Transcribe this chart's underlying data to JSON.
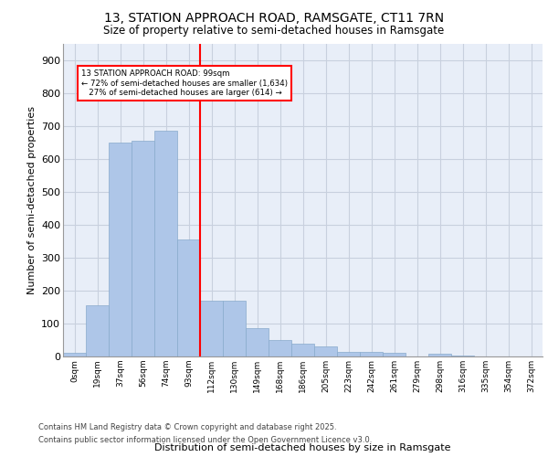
{
  "title1": "13, STATION APPROACH ROAD, RAMSGATE, CT11 7RN",
  "title2": "Size of property relative to semi-detached houses in Ramsgate",
  "xlabel": "Distribution of semi-detached houses by size in Ramsgate",
  "ylabel": "Number of semi-detached properties",
  "categories": [
    "0sqm",
    "19sqm",
    "37sqm",
    "56sqm",
    "74sqm",
    "93sqm",
    "112sqm",
    "130sqm",
    "149sqm",
    "168sqm",
    "186sqm",
    "205sqm",
    "223sqm",
    "242sqm",
    "261sqm",
    "279sqm",
    "298sqm",
    "316sqm",
    "335sqm",
    "354sqm",
    "372sqm"
  ],
  "values": [
    10,
    155,
    650,
    655,
    685,
    355,
    170,
    170,
    85,
    50,
    40,
    30,
    13,
    13,
    10,
    0,
    8,
    2,
    0,
    0,
    0
  ],
  "bar_color": "#aec6e8",
  "bar_edge_color": "#88aacc",
  "vline_color": "red",
  "annotation_text": "13 STATION APPROACH ROAD: 99sqm\n← 72% of semi-detached houses are smaller (1,634)\n   27% of semi-detached houses are larger (614) →",
  "annotation_box_color": "white",
  "annotation_box_edge": "red",
  "ylim": [
    0,
    950
  ],
  "yticks": [
    0,
    100,
    200,
    300,
    400,
    500,
    600,
    700,
    800,
    900
  ],
  "footer1": "Contains HM Land Registry data © Crown copyright and database right 2025.",
  "footer2": "Contains public sector information licensed under the Open Government Licence v3.0.",
  "bg_color": "#e8eef8",
  "grid_color": "#c8d0de",
  "title1_fontsize": 10,
  "title2_fontsize": 8.5
}
